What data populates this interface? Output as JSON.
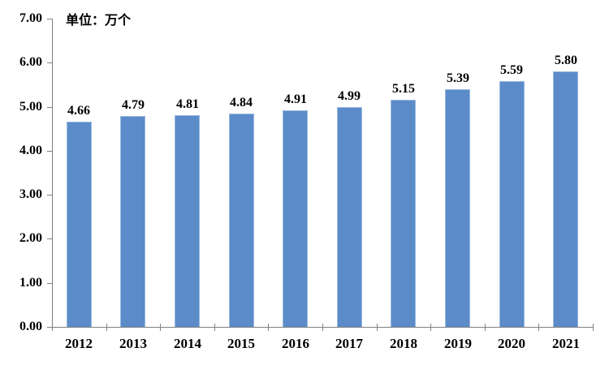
{
  "chart": {
    "unit_label": "单位：万个",
    "bar_color": "#5b8cc9",
    "bar_edge_color": "#9ab9e0",
    "axis_color": "#808080",
    "text_color": "#000000"
  },
  "chart_data": {
    "type": "bar",
    "categories": [
      "2012",
      "2013",
      "2014",
      "2015",
      "2016",
      "2017",
      "2018",
      "2019",
      "2020",
      "2021"
    ],
    "values": [
      4.66,
      4.79,
      4.81,
      4.84,
      4.91,
      4.99,
      5.15,
      5.39,
      5.59,
      5.8
    ],
    "data_labels": [
      "4.66",
      "4.79",
      "4.81",
      "4.84",
      "4.91",
      "4.99",
      "5.15",
      "5.39",
      "5.59",
      "5.80"
    ],
    "title": "",
    "xlabel": "",
    "ylabel": "单位：万个",
    "ylim": [
      0,
      7
    ],
    "ytick_step": 1,
    "ytick_labels": [
      "0.00",
      "1.00",
      "2.00",
      "3.00",
      "4.00",
      "5.00",
      "6.00",
      "7.00"
    ],
    "grid": false,
    "legend": "none"
  }
}
